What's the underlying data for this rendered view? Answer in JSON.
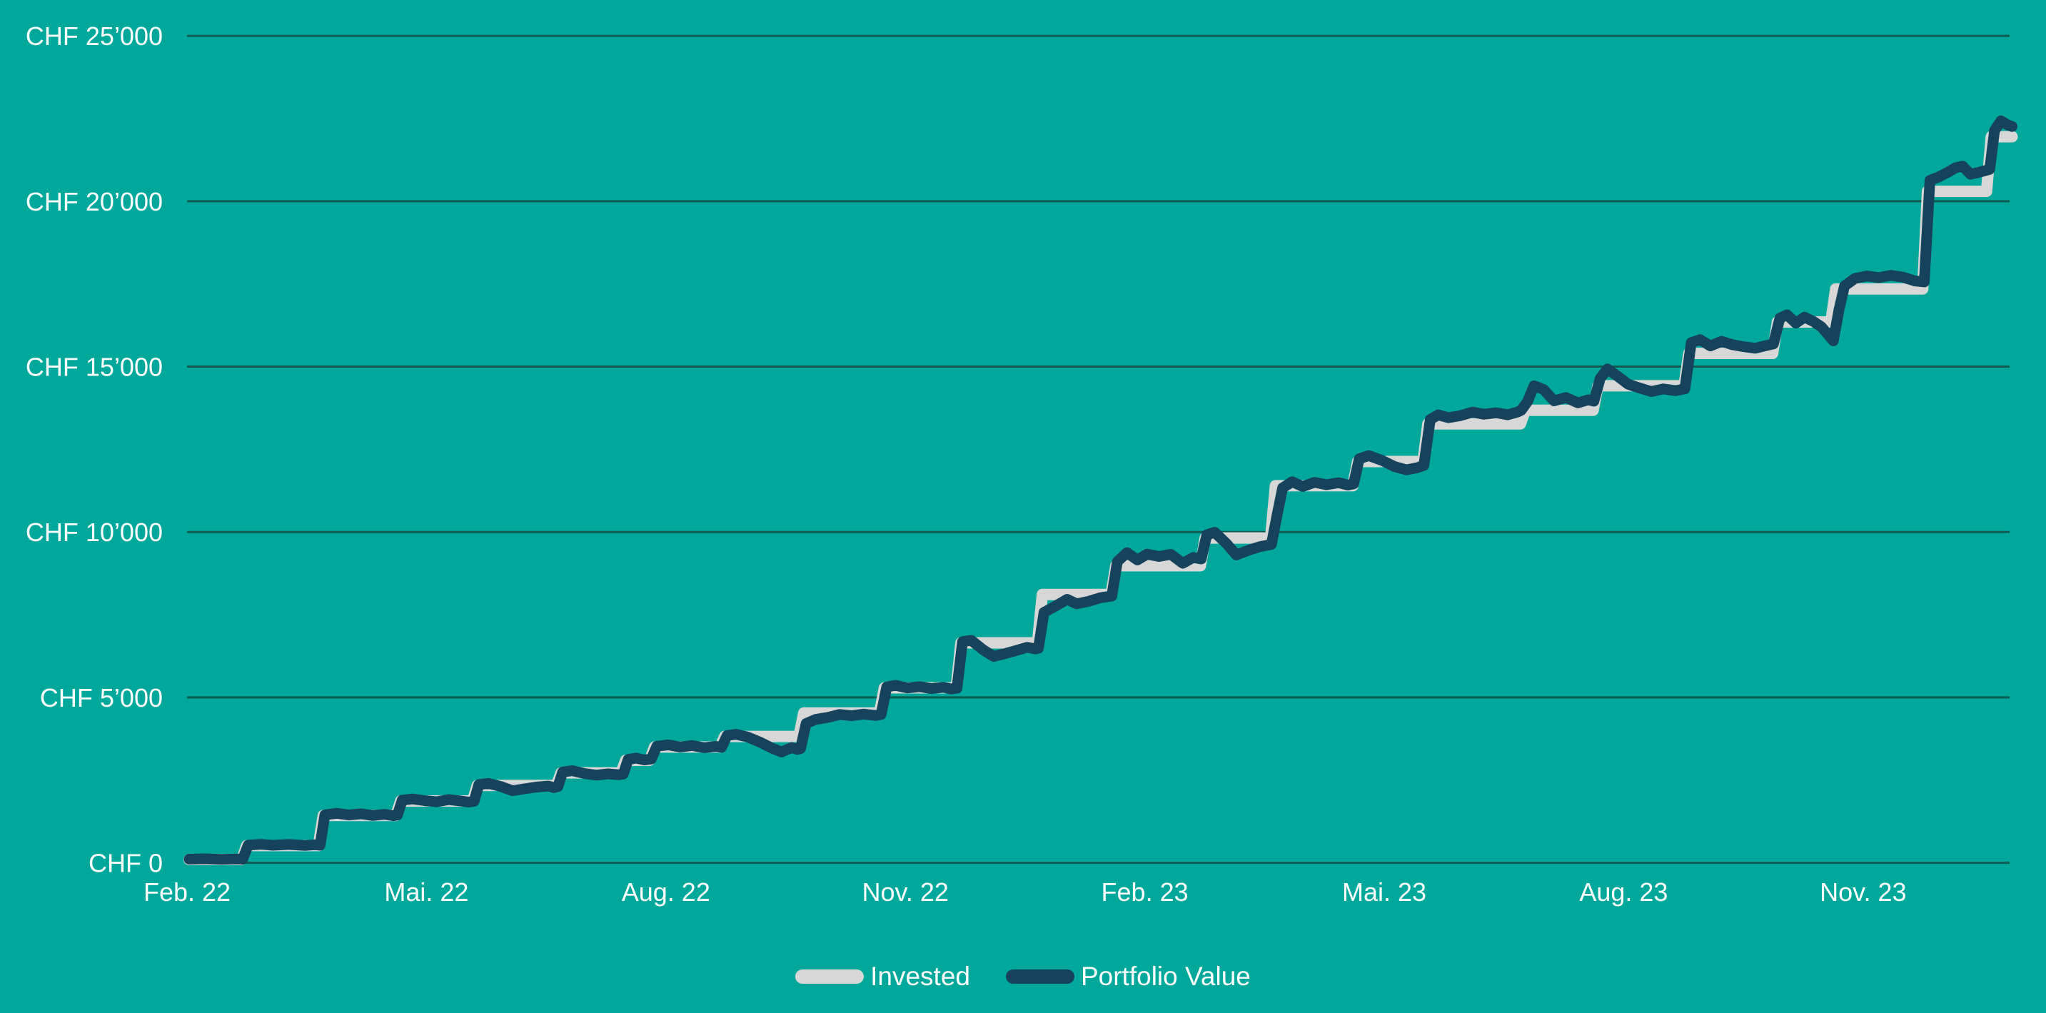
{
  "colors": {
    "background": "#00a89b",
    "portfolio_line": "#16425c",
    "invested_line": "#d6d7d6",
    "gridline": "#0f5b51",
    "label_text": "#ffffff"
  },
  "legend": {
    "items": [
      {
        "label": "Invested",
        "color_key": "invested_line"
      },
      {
        "label": "Portfolio Value",
        "color_key": "portfolio_line"
      }
    ]
  },
  "chart_data": {
    "type": "line",
    "title": "",
    "xlabel": "",
    "ylabel": "",
    "x_unit": "months since Feb. 2022",
    "xlim": [
      0,
      22.84
    ],
    "ylim": [
      0,
      25000
    ],
    "grid": true,
    "legend_position": "bottom-center",
    "y_ticks": [
      {
        "value": 0,
        "label": "CHF 0"
      },
      {
        "value": 5000,
        "label": "CHF 5’000"
      },
      {
        "value": 10000,
        "label": "CHF 10’000"
      },
      {
        "value": 15000,
        "label": "CHF 15’000"
      },
      {
        "value": 20000,
        "label": "CHF 20’000"
      },
      {
        "value": 25000,
        "label": "CHF 25’000"
      }
    ],
    "x_ticks": [
      {
        "month_offset": 0,
        "label": "Feb. 22"
      },
      {
        "month_offset": 3,
        "label": "Mai. 22"
      },
      {
        "month_offset": 6,
        "label": "Aug. 22"
      },
      {
        "month_offset": 9,
        "label": "Nov. 22"
      },
      {
        "month_offset": 12,
        "label": "Feb. 23"
      },
      {
        "month_offset": 15,
        "label": "Mai. 23"
      },
      {
        "month_offset": 18,
        "label": "Aug. 23"
      },
      {
        "month_offset": 21,
        "label": "Nov. 23"
      }
    ],
    "series": [
      {
        "name": "Invested",
        "color_key": "invested_line",
        "points": [
          [
            0,
            100
          ],
          [
            0.66,
            100
          ],
          [
            0.72,
            520
          ],
          [
            1.62,
            520
          ],
          [
            1.68,
            1430
          ],
          [
            2.59,
            1430
          ],
          [
            2.65,
            1870
          ],
          [
            3.55,
            1870
          ],
          [
            3.61,
            2340
          ],
          [
            4.6,
            2340
          ],
          [
            4.66,
            2720
          ],
          [
            5.41,
            2720
          ],
          [
            5.47,
            3100
          ],
          [
            5.77,
            3100
          ],
          [
            5.83,
            3500
          ],
          [
            6.65,
            3500
          ],
          [
            6.71,
            3820
          ],
          [
            7.64,
            3820
          ],
          [
            7.7,
            4530
          ],
          [
            8.65,
            4530
          ],
          [
            8.71,
            5290
          ],
          [
            9.61,
            5290
          ],
          [
            9.67,
            6650
          ],
          [
            10.63,
            6650
          ],
          [
            10.69,
            8110
          ],
          [
            11.55,
            8110
          ],
          [
            11.61,
            8980
          ],
          [
            12.67,
            8980
          ],
          [
            12.73,
            9820
          ],
          [
            13.55,
            9820
          ],
          [
            13.61,
            11400
          ],
          [
            14.58,
            11400
          ],
          [
            14.64,
            12130
          ],
          [
            15.46,
            12130
          ],
          [
            15.52,
            13270
          ],
          [
            16.68,
            13270
          ],
          [
            16.74,
            13680
          ],
          [
            17.59,
            13680
          ],
          [
            17.65,
            14420
          ],
          [
            18.73,
            14420
          ],
          [
            18.79,
            15400
          ],
          [
            19.84,
            15400
          ],
          [
            19.9,
            16350
          ],
          [
            20.57,
            16350
          ],
          [
            20.63,
            17350
          ],
          [
            21.72,
            17350
          ],
          [
            21.78,
            20300
          ],
          [
            22.52,
            20300
          ],
          [
            22.58,
            21950
          ],
          [
            22.84,
            21950
          ]
        ]
      },
      {
        "name": "Portfolio Value",
        "color_key": "portfolio_line",
        "points": [
          [
            0,
            110
          ],
          [
            0.2,
            120
          ],
          [
            0.4,
            105
          ],
          [
            0.62,
            115
          ],
          [
            0.67,
            105
          ],
          [
            0.74,
            535
          ],
          [
            0.9,
            560
          ],
          [
            1.05,
            530
          ],
          [
            1.25,
            555
          ],
          [
            1.45,
            525
          ],
          [
            1.58,
            545
          ],
          [
            1.64,
            530
          ],
          [
            1.7,
            1450
          ],
          [
            1.85,
            1495
          ],
          [
            2.0,
            1445
          ],
          [
            2.15,
            1480
          ],
          [
            2.3,
            1430
          ],
          [
            2.45,
            1465
          ],
          [
            2.56,
            1425
          ],
          [
            2.61,
            1445
          ],
          [
            2.67,
            1895
          ],
          [
            2.8,
            1930
          ],
          [
            2.95,
            1880
          ],
          [
            3.1,
            1845
          ],
          [
            3.25,
            1910
          ],
          [
            3.4,
            1870
          ],
          [
            3.5,
            1835
          ],
          [
            3.57,
            1860
          ],
          [
            3.63,
            2365
          ],
          [
            3.75,
            2400
          ],
          [
            3.9,
            2310
          ],
          [
            4.05,
            2180
          ],
          [
            4.2,
            2235
          ],
          [
            4.35,
            2290
          ],
          [
            4.5,
            2320
          ],
          [
            4.57,
            2275
          ],
          [
            4.62,
            2305
          ],
          [
            4.68,
            2745
          ],
          [
            4.8,
            2785
          ],
          [
            4.95,
            2700
          ],
          [
            5.1,
            2650
          ],
          [
            5.25,
            2690
          ],
          [
            5.38,
            2660
          ],
          [
            5.44,
            2685
          ],
          [
            5.5,
            3125
          ],
          [
            5.6,
            3165
          ],
          [
            5.7,
            3110
          ],
          [
            5.79,
            3135
          ],
          [
            5.86,
            3525
          ],
          [
            6.0,
            3565
          ],
          [
            6.15,
            3500
          ],
          [
            6.3,
            3545
          ],
          [
            6.45,
            3480
          ],
          [
            6.6,
            3520
          ],
          [
            6.67,
            3490
          ],
          [
            6.74,
            3845
          ],
          [
            6.85,
            3885
          ],
          [
            7.0,
            3800
          ],
          [
            7.15,
            3650
          ],
          [
            7.3,
            3470
          ],
          [
            7.42,
            3350
          ],
          [
            7.55,
            3485
          ],
          [
            7.62,
            3430
          ],
          [
            7.66,
            3455
          ],
          [
            7.73,
            4210
          ],
          [
            7.85,
            4335
          ],
          [
            8.0,
            4395
          ],
          [
            8.15,
            4485
          ],
          [
            8.3,
            4445
          ],
          [
            8.45,
            4495
          ],
          [
            8.6,
            4455
          ],
          [
            8.67,
            4485
          ],
          [
            8.74,
            5315
          ],
          [
            8.85,
            5365
          ],
          [
            9.0,
            5285
          ],
          [
            9.15,
            5325
          ],
          [
            9.3,
            5265
          ],
          [
            9.45,
            5305
          ],
          [
            9.55,
            5255
          ],
          [
            9.62,
            5275
          ],
          [
            9.69,
            6685
          ],
          [
            9.8,
            6725
          ],
          [
            9.95,
            6435
          ],
          [
            10.08,
            6240
          ],
          [
            10.2,
            6310
          ],
          [
            10.35,
            6410
          ],
          [
            10.5,
            6515
          ],
          [
            10.6,
            6465
          ],
          [
            10.64,
            6485
          ],
          [
            10.71,
            7570
          ],
          [
            10.85,
            7755
          ],
          [
            11.0,
            7965
          ],
          [
            11.12,
            7830
          ],
          [
            11.27,
            7905
          ],
          [
            11.42,
            8015
          ],
          [
            11.56,
            8060
          ],
          [
            11.63,
            9105
          ],
          [
            11.75,
            9375
          ],
          [
            11.88,
            9155
          ],
          [
            12.0,
            9330
          ],
          [
            12.15,
            9260
          ],
          [
            12.3,
            9325
          ],
          [
            12.45,
            9055
          ],
          [
            12.58,
            9230
          ],
          [
            12.68,
            9185
          ],
          [
            12.75,
            9915
          ],
          [
            12.85,
            9990
          ],
          [
            13.0,
            9640
          ],
          [
            13.12,
            9305
          ],
          [
            13.28,
            9455
          ],
          [
            13.42,
            9560
          ],
          [
            13.56,
            9625
          ],
          [
            13.63,
            10500
          ],
          [
            13.7,
            11335
          ],
          [
            13.82,
            11520
          ],
          [
            13.95,
            11375
          ],
          [
            14.1,
            11500
          ],
          [
            14.25,
            11430
          ],
          [
            14.4,
            11490
          ],
          [
            14.52,
            11420
          ],
          [
            14.59,
            11455
          ],
          [
            14.66,
            12215
          ],
          [
            14.78,
            12310
          ],
          [
            14.95,
            12160
          ],
          [
            15.1,
            11980
          ],
          [
            15.25,
            11880
          ],
          [
            15.39,
            11945
          ],
          [
            15.47,
            12015
          ],
          [
            15.55,
            13405
          ],
          [
            15.65,
            13540
          ],
          [
            15.78,
            13455
          ],
          [
            15.92,
            13515
          ],
          [
            16.08,
            13625
          ],
          [
            16.22,
            13560
          ],
          [
            16.38,
            13605
          ],
          [
            16.52,
            13545
          ],
          [
            16.64,
            13625
          ],
          [
            16.69,
            13680
          ],
          [
            16.77,
            13950
          ],
          [
            16.85,
            14420
          ],
          [
            16.97,
            14310
          ],
          [
            17.1,
            13965
          ],
          [
            17.25,
            14065
          ],
          [
            17.4,
            13905
          ],
          [
            17.53,
            13995
          ],
          [
            17.6,
            13955
          ],
          [
            17.68,
            14650
          ],
          [
            17.77,
            14930
          ],
          [
            17.9,
            14705
          ],
          [
            18.03,
            14465
          ],
          [
            18.17,
            14355
          ],
          [
            18.32,
            14245
          ],
          [
            18.47,
            14325
          ],
          [
            18.62,
            14275
          ],
          [
            18.74,
            14325
          ],
          [
            18.82,
            15725
          ],
          [
            18.93,
            15815
          ],
          [
            19.06,
            15625
          ],
          [
            19.2,
            15765
          ],
          [
            19.33,
            15665
          ],
          [
            19.47,
            15605
          ],
          [
            19.62,
            15555
          ],
          [
            19.74,
            15625
          ],
          [
            19.85,
            15685
          ],
          [
            19.93,
            16465
          ],
          [
            20.02,
            16565
          ],
          [
            20.13,
            16315
          ],
          [
            20.24,
            16495
          ],
          [
            20.35,
            16365
          ],
          [
            20.45,
            16205
          ],
          [
            20.54,
            15950
          ],
          [
            20.6,
            15780
          ],
          [
            20.67,
            16705
          ],
          [
            20.74,
            17435
          ],
          [
            20.87,
            17665
          ],
          [
            21.02,
            17740
          ],
          [
            21.17,
            17690
          ],
          [
            21.32,
            17760
          ],
          [
            21.47,
            17705
          ],
          [
            21.62,
            17590
          ],
          [
            21.74,
            17560
          ],
          [
            21.81,
            20630
          ],
          [
            21.92,
            20735
          ],
          [
            22.03,
            20870
          ],
          [
            22.13,
            21010
          ],
          [
            22.22,
            21060
          ],
          [
            22.32,
            20815
          ],
          [
            22.42,
            20870
          ],
          [
            22.5,
            20925
          ],
          [
            22.56,
            20965
          ],
          [
            22.62,
            22135
          ],
          [
            22.7,
            22430
          ],
          [
            22.78,
            22310
          ],
          [
            22.84,
            22260
          ]
        ]
      }
    ]
  }
}
